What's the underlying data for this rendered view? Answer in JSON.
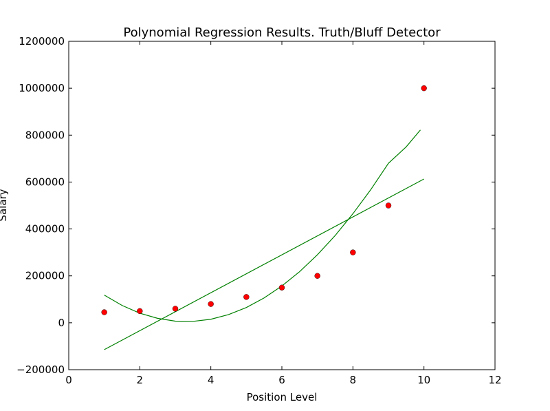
{
  "chart_data": {
    "type": "scatter",
    "title": "Polynomial Regression Results. Truth/Bluff Detector",
    "xlabel": "Position Level",
    "ylabel": "Salary",
    "xlim": [
      0,
      12
    ],
    "ylim": [
      -200000,
      1200000
    ],
    "xticks": [
      0,
      2,
      4,
      6,
      8,
      10,
      12
    ],
    "yticks": [
      -200000,
      0,
      200000,
      400000,
      600000,
      800000,
      1000000,
      1200000
    ],
    "xtick_labels": [
      "0",
      "2",
      "4",
      "6",
      "8",
      "10",
      "12"
    ],
    "ytick_labels": [
      "−200000",
      "0",
      "200000",
      "400000",
      "600000",
      "800000",
      "1000000",
      "1200000"
    ],
    "grid": false,
    "series": [
      {
        "kind": "scatter",
        "color": "#ff0000",
        "x": [
          1,
          2,
          3,
          4,
          5,
          6,
          7,
          8,
          9,
          10
        ],
        "y": [
          45000,
          50000,
          60000,
          80000,
          110000,
          150000,
          200000,
          300000,
          500000,
          1000000
        ]
      },
      {
        "kind": "line",
        "color": "#008000",
        "x": [
          1,
          10
        ],
        "y": [
          -114454,
          613000
        ]
      },
      {
        "kind": "line",
        "color": "#008000",
        "x": [
          1.0,
          1.5,
          2.0,
          2.5,
          3.0,
          3.5,
          4.0,
          4.5,
          5.0,
          5.5,
          6.0,
          6.5,
          7.0,
          7.5,
          8.0,
          8.5,
          9.0,
          9.5,
          9.9
        ],
        "y": [
          118000,
          74000,
          41000,
          19000,
          7000,
          6000,
          15000,
          35000,
          65000,
          106000,
          157000,
          218000,
          290000,
          372000,
          465000,
          567000,
          680000,
          750000,
          822000
        ]
      }
    ]
  }
}
